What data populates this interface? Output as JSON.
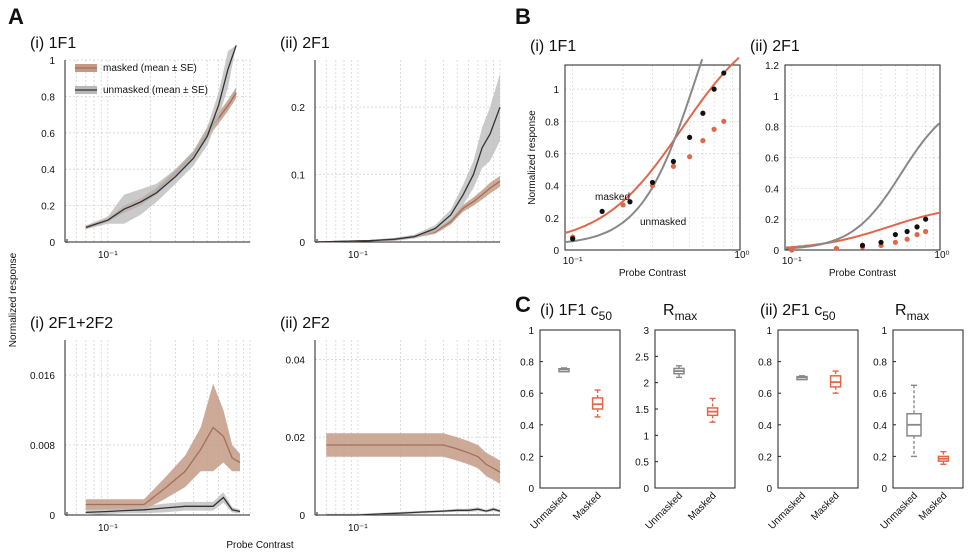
{
  "figure": {
    "panel_A_label": "A",
    "panel_B_label": "B",
    "panel_C_label": "C",
    "shared_ylabel_A": "Normalized response",
    "shared_xlabel_A": "Probe Contrast"
  },
  "colors": {
    "masked": "#a0705a",
    "masked_fill": "#c49a86",
    "unmasked": "#333333",
    "unmasked_fill": "#b8b8b8",
    "orange": "#e0674a",
    "gray": "#888888"
  },
  "chart_data": [
    {
      "id": "A_1F1",
      "type": "area",
      "title": "(i) 1F1",
      "xlabel": "",
      "ylabel": "",
      "x_scale": "log",
      "xlim": [
        0.05,
        1
      ],
      "ylim": [
        0,
        1
      ],
      "yticks": [
        "0",
        "0.2",
        "0.4",
        "0.6",
        "0.8",
        "1"
      ],
      "xtick_label": "10⁻¹",
      "legend": [
        "masked (mean ± SE)",
        "unmasked (mean ± SE)"
      ],
      "legend_loc": "top-left",
      "x": [
        0.07,
        0.1,
        0.13,
        0.17,
        0.22,
        0.3,
        0.4,
        0.5,
        0.6,
        0.7,
        0.8
      ],
      "series": [
        {
          "name": "masked (mean ± SE)",
          "mean": [
            0.08,
            0.12,
            0.18,
            0.22,
            0.28,
            0.38,
            0.48,
            0.6,
            0.68,
            0.75,
            0.82
          ],
          "se": [
            0.01,
            0.01,
            0.02,
            0.02,
            0.02,
            0.02,
            0.02,
            0.03,
            0.03,
            0.03,
            0.03
          ]
        },
        {
          "name": "unmasked (mean ± SE)",
          "mean": [
            0.08,
            0.12,
            0.18,
            0.22,
            0.27,
            0.36,
            0.46,
            0.58,
            0.75,
            0.95,
            1.2
          ],
          "se": [
            0.01,
            0.02,
            0.08,
            0.07,
            0.05,
            0.04,
            0.04,
            0.05,
            0.07,
            0.1,
            0.12
          ]
        }
      ]
    },
    {
      "id": "A_2F1",
      "type": "area",
      "title": "(ii) 2F1",
      "xlabel": "",
      "ylabel": "",
      "x_scale": "log",
      "xlim": [
        0.05,
        1
      ],
      "ylim": [
        0,
        0.27
      ],
      "yticks": [
        "0",
        "0.1",
        "0.2"
      ],
      "xtick_label": "10⁻¹",
      "x": [
        0.05,
        0.08,
        0.12,
        0.18,
        0.25,
        0.35,
        0.45,
        0.55,
        0.65,
        0.75,
        0.85,
        1.0
      ],
      "series": [
        {
          "name": "masked",
          "mean": [
            0,
            0.001,
            0.002,
            0.004,
            0.008,
            0.015,
            0.03,
            0.05,
            0.06,
            0.07,
            0.08,
            0.09
          ],
          "se": [
            0,
            0.001,
            0.001,
            0.002,
            0.002,
            0.003,
            0.004,
            0.005,
            0.006,
            0.007,
            0.008,
            0.008
          ]
        },
        {
          "name": "unmasked",
          "mean": [
            0,
            0.001,
            0.002,
            0.004,
            0.008,
            0.02,
            0.04,
            0.07,
            0.1,
            0.14,
            0.16,
            0.2
          ],
          "se": [
            0,
            0.001,
            0.001,
            0.002,
            0.003,
            0.005,
            0.008,
            0.015,
            0.02,
            0.03,
            0.04,
            0.05
          ]
        }
      ]
    },
    {
      "id": "A_2F1_2F2",
      "type": "area",
      "title": "(i)  2F1+2F2",
      "xlabel": "",
      "ylabel": "",
      "x_scale": "log",
      "xlim": [
        0.05,
        1
      ],
      "ylim": [
        0,
        0.02
      ],
      "yticks": [
        "0",
        "0.008",
        "0.016"
      ],
      "xtick_label": "10⁻¹",
      "x": [
        0.07,
        0.1,
        0.13,
        0.18,
        0.25,
        0.35,
        0.45,
        0.55,
        0.65,
        0.75,
        0.85
      ],
      "series": [
        {
          "name": "masked",
          "mean": [
            0.0012,
            0.0012,
            0.0012,
            0.0012,
            0.003,
            0.005,
            0.0075,
            0.01,
            0.009,
            0.0065,
            0.006
          ],
          "se": [
            0.0006,
            0.0006,
            0.0006,
            0.0006,
            0.0012,
            0.0018,
            0.0025,
            0.005,
            0.003,
            0.0015,
            0.001
          ]
        },
        {
          "name": "unmasked",
          "mean": [
            0.0003,
            0.0004,
            0.0005,
            0.0006,
            0.0008,
            0.001,
            0.001,
            0.001,
            0.002,
            0.0006,
            0.0004
          ],
          "se": [
            0.0003,
            0.0003,
            0.0003,
            0.0004,
            0.0005,
            0.0005,
            0.0005,
            0.0005,
            0.0006,
            0.0003,
            0.0002
          ]
        }
      ]
    },
    {
      "id": "A_2F2",
      "type": "area",
      "title": "(ii)  2F2",
      "xlabel": "",
      "ylabel": "",
      "x_scale": "log",
      "xlim": [
        0.05,
        1
      ],
      "ylim": [
        0,
        0.045
      ],
      "yticks": [
        "0",
        "0.02",
        "0.04"
      ],
      "xtick_label": "10⁻¹",
      "x": [
        0.06,
        0.1,
        0.15,
        0.2,
        0.3,
        0.4,
        0.5,
        0.6,
        0.7,
        0.8,
        0.9,
        1.0
      ],
      "series": [
        {
          "name": "masked",
          "mean": [
            0.018,
            0.018,
            0.018,
            0.018,
            0.018,
            0.018,
            0.017,
            0.016,
            0.015,
            0.013,
            0.012,
            0.011
          ],
          "se": [
            0.003,
            0.003,
            0.003,
            0.003,
            0.003,
            0.003,
            0.003,
            0.003,
            0.003,
            0.003,
            0.003,
            0.003
          ]
        },
        {
          "name": "unmasked",
          "mean": [
            0,
            0,
            0.0003,
            0.0005,
            0.0008,
            0.001,
            0.0012,
            0.0012,
            0.0015,
            0.001,
            0.0015,
            0.001
          ],
          "se": [
            0.0003,
            0.0003,
            0.0003,
            0.0003,
            0.0003,
            0.0003,
            0.0004,
            0.0004,
            0.0005,
            0.0003,
            0.0005,
            0.0003
          ]
        }
      ]
    },
    {
      "id": "B_1F1",
      "type": "scatter",
      "title": "(i) 1F1",
      "xlabel": "Probe Contrast",
      "ylabel": "Normalized response",
      "x_scale": "log",
      "xlim": [
        0.09,
        1
      ],
      "ylim": [
        0,
        1.15
      ],
      "yticks": [
        "0",
        "0.2",
        "0.4",
        "0.6",
        "0.8",
        "1"
      ],
      "xtick_labels": [
        "10⁻¹",
        "10⁰"
      ],
      "annotations": [
        "masked",
        "unmasked"
      ],
      "series": [
        {
          "name": "masked",
          "x": [
            0.1,
            0.2,
            0.3,
            0.4,
            0.5,
            0.6,
            0.7,
            0.8
          ],
          "y": [
            0.08,
            0.28,
            0.4,
            0.52,
            0.58,
            0.68,
            0.75,
            0.8
          ]
        },
        {
          "name": "unmasked",
          "x": [
            0.1,
            0.15,
            0.22,
            0.3,
            0.4,
            0.5,
            0.6,
            0.7,
            0.8
          ],
          "y": [
            0.07,
            0.24,
            0.3,
            0.42,
            0.55,
            0.7,
            0.85,
            1.0,
            1.1
          ]
        }
      ]
    },
    {
      "id": "B_2F1",
      "type": "scatter",
      "title": "(ii) 2F1",
      "xlabel": "Probe Contrast",
      "ylabel": "",
      "x_scale": "log",
      "xlim": [
        0.09,
        1
      ],
      "ylim": [
        0,
        1.2
      ],
      "yticks": [
        "0",
        "0.2",
        "0.4",
        "0.6",
        "0.8",
        "1",
        "1.2"
      ],
      "xtick_labels": [
        "10⁻¹",
        "10⁰"
      ],
      "series": [
        {
          "name": "masked",
          "x": [
            0.1,
            0.2,
            0.3,
            0.4,
            0.5,
            0.6,
            0.7,
            0.8
          ],
          "y": [
            0,
            0.01,
            0.02,
            0.03,
            0.05,
            0.07,
            0.1,
            0.12
          ]
        },
        {
          "name": "unmasked",
          "x": [
            0.3,
            0.4,
            0.5,
            0.6,
            0.7,
            0.8
          ],
          "y": [
            0.03,
            0.05,
            0.1,
            0.12,
            0.15,
            0.2
          ]
        }
      ]
    },
    {
      "id": "C_1F1_c50",
      "type": "box",
      "title": "(i)  1F1 c50",
      "yticks": [
        "0",
        "0.2",
        "0.4",
        "0.6",
        "0.8",
        "1"
      ],
      "ylim": [
        0,
        1
      ],
      "categories": [
        "Unmasked",
        "Masked"
      ],
      "boxes": [
        {
          "name": "Unmasked",
          "min": 0.74,
          "q1": 0.745,
          "median": 0.75,
          "q3": 0.755,
          "max": 0.76
        },
        {
          "name": "Masked",
          "min": 0.45,
          "q1": 0.5,
          "median": 0.53,
          "q3": 0.57,
          "max": 0.62
        }
      ]
    },
    {
      "id": "C_1F1_Rmax",
      "type": "box",
      "title": "Rmax",
      "yticks": [
        "0",
        "0.5",
        "1",
        "1.5",
        "2",
        "2.5",
        "3"
      ],
      "ylim": [
        0,
        3
      ],
      "categories": [
        "Unmasked",
        "Masked"
      ],
      "boxes": [
        {
          "name": "Unmasked",
          "min": 2.1,
          "q1": 2.17,
          "median": 2.22,
          "q3": 2.27,
          "max": 2.32
        },
        {
          "name": "Masked",
          "min": 1.25,
          "q1": 1.38,
          "median": 1.45,
          "q3": 1.52,
          "max": 1.7
        }
      ]
    },
    {
      "id": "C_2F1_c50",
      "type": "box",
      "title": "(ii) 2F1 c50",
      "yticks": [
        "0",
        "0.2",
        "0.4",
        "0.6",
        "0.8",
        "1"
      ],
      "ylim": [
        0,
        1
      ],
      "categories": [
        "Unmasked",
        "Masked"
      ],
      "boxes": [
        {
          "name": "Unmasked",
          "min": 0.69,
          "q1": 0.695,
          "median": 0.7,
          "q3": 0.705,
          "max": 0.71
        },
        {
          "name": "Masked",
          "min": 0.6,
          "q1": 0.64,
          "median": 0.67,
          "q3": 0.71,
          "max": 0.74
        }
      ]
    },
    {
      "id": "C_2F1_Rmax",
      "type": "box",
      "title": "Rmax",
      "yticks": [
        "0",
        "0.2",
        "0.4",
        "0.6",
        "0.8",
        "1"
      ],
      "ylim": [
        0,
        1
      ],
      "categories": [
        "Unmasked",
        "Masked"
      ],
      "boxes": [
        {
          "name": "Unmasked",
          "min": 0.2,
          "q1": 0.33,
          "median": 0.4,
          "q3": 0.47,
          "max": 0.65
        },
        {
          "name": "Masked",
          "min": 0.15,
          "q1": 0.17,
          "median": 0.185,
          "q3": 0.2,
          "max": 0.23
        }
      ]
    }
  ]
}
